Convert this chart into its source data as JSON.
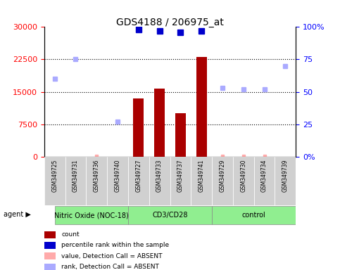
{
  "title": "GDS4188 / 206975_at",
  "samples": [
    "GSM349725",
    "GSM349731",
    "GSM349736",
    "GSM349740",
    "GSM349727",
    "GSM349733",
    "GSM349737",
    "GSM349741",
    "GSM349729",
    "GSM349730",
    "GSM349734",
    "GSM349739"
  ],
  "groups": [
    {
      "name": "Nitric Oxide (NOC-18)",
      "indices": [
        0,
        1,
        2,
        3
      ],
      "color": "#90ee90"
    },
    {
      "name": "CD3/CD28",
      "indices": [
        4,
        5,
        6,
        7
      ],
      "color": "#90ee90"
    },
    {
      "name": "control",
      "indices": [
        8,
        9,
        10,
        11
      ],
      "color": "#90ee90"
    }
  ],
  "counts": [
    null,
    null,
    null,
    null,
    13500,
    15800,
    10000,
    23000,
    null,
    null,
    null,
    null
  ],
  "absent_counts": [
    null,
    null,
    50,
    null,
    null,
    null,
    null,
    null,
    50,
    50,
    50,
    null
  ],
  "percentile_ranks": [
    null,
    null,
    null,
    null,
    98,
    97,
    96,
    97,
    null,
    null,
    null,
    null
  ],
  "absent_ranks": [
    60,
    75,
    null,
    27,
    null,
    null,
    null,
    null,
    53,
    52,
    52,
    70
  ],
  "ylim_left": [
    0,
    30000
  ],
  "ylim_right": [
    0,
    100
  ],
  "yticks_left": [
    0,
    7500,
    15000,
    22500,
    30000
  ],
  "yticks_right": [
    0,
    25,
    50,
    75,
    100
  ],
  "ytick_labels_left": [
    "0",
    "7500",
    "15000",
    "22500",
    "30000"
  ],
  "ytick_labels_right": [
    "0%",
    "25",
    "50",
    "75",
    "100%"
  ],
  "bar_color": "#aa0000",
  "rank_color": "#0000cc",
  "absent_val_color": "#ffaaaa",
  "absent_rank_color": "#aaaaff",
  "grid_color": "#000000",
  "bg_color": "#ffffff",
  "label_area_color": "#d0d0d0",
  "agent_label": "agent",
  "legend_items": [
    {
      "color": "#aa0000",
      "marker": "s",
      "label": "count"
    },
    {
      "color": "#0000cc",
      "marker": "s",
      "label": "percentile rank within the sample"
    },
    {
      "color": "#ffaaaa",
      "marker": "s",
      "label": "value, Detection Call = ABSENT"
    },
    {
      "color": "#aaaaff",
      "marker": "s",
      "label": "rank, Detection Call = ABSENT"
    }
  ]
}
